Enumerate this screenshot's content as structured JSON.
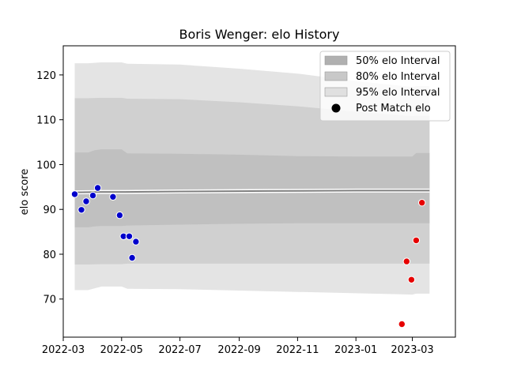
{
  "chart_data": {
    "type": "scatter",
    "title": "Boris Wenger: elo History",
    "xlabel": "",
    "ylabel": "elo score",
    "x_range": [
      "2022-03-01",
      "2023-04-15"
    ],
    "ylim": [
      61.5,
      126.5
    ],
    "x_ticks": [
      "2022-03",
      "2022-05",
      "2022-07",
      "2022-09",
      "2022-11",
      "2023-01",
      "2023-03"
    ],
    "y_ticks": [
      70,
      80,
      90,
      100,
      110,
      120
    ],
    "grid": false,
    "legend_position": "top-right",
    "legend": [
      {
        "label": "50% elo Interval",
        "kind": "band",
        "color": "#b0b0b0"
      },
      {
        "label": "80% elo Interval",
        "kind": "band",
        "color": "#c8c8c8"
      },
      {
        "label": "95% elo Interval",
        "kind": "band",
        "color": "#e0e0e0"
      },
      {
        "label": "Post Match elo",
        "kind": "marker",
        "color": "#000000"
      }
    ],
    "mean_line": {
      "name": "",
      "color": "#808080",
      "x": [
        "2022-03-13",
        "2022-04-10",
        "2022-05-05",
        "2022-07-01",
        "2022-10-01",
        "2023-01-01",
        "2023-03-06",
        "2023-03-19"
      ],
      "y": [
        93.8,
        93.9,
        93.9,
        94.0,
        94.1,
        94.2,
        94.2,
        94.2
      ]
    },
    "bands": [
      {
        "name": "95% elo Interval",
        "color": "#e4e4e4",
        "x": [
          "2022-03-13",
          "2022-03-20",
          "2022-03-27",
          "2022-04-10",
          "2022-04-24",
          "2022-05-01",
          "2022-05-07",
          "2022-07-01",
          "2022-09-01",
          "2022-11-01",
          "2023-01-01",
          "2023-03-01",
          "2023-03-05",
          "2023-03-19"
        ],
        "lower": [
          72.0,
          72.0,
          72.0,
          72.8,
          72.8,
          72.8,
          72.3,
          72.2,
          71.9,
          71.6,
          71.3,
          71.0,
          71.2,
          71.2
        ],
        "upper": [
          122.6,
          122.6,
          122.6,
          122.8,
          122.8,
          122.8,
          122.5,
          122.3,
          121.4,
          120.3,
          118.6,
          117.3,
          117.5,
          117.5
        ]
      },
      {
        "name": "80% elo Interval",
        "color": "#d0d0d0",
        "x": [
          "2022-03-13",
          "2022-03-20",
          "2022-03-27",
          "2022-04-10",
          "2022-04-24",
          "2022-05-01",
          "2022-05-07",
          "2022-07-01",
          "2022-09-01",
          "2022-11-01",
          "2023-01-01",
          "2023-03-01",
          "2023-03-05",
          "2023-03-19"
        ],
        "lower": [
          77.7,
          77.7,
          77.7,
          77.8,
          77.8,
          77.8,
          77.9,
          77.9,
          77.9,
          77.9,
          77.9,
          77.9,
          77.9,
          77.9
        ],
        "upper": [
          114.8,
          114.8,
          114.8,
          114.9,
          114.9,
          114.9,
          114.7,
          114.6,
          113.9,
          113.0,
          111.8,
          110.8,
          110.9,
          110.9
        ]
      },
      {
        "name": "50% elo Interval",
        "color": "#c0c0c0",
        "x": [
          "2022-03-13",
          "2022-03-27",
          "2022-04-03",
          "2022-04-10",
          "2022-04-24",
          "2022-05-01",
          "2022-05-07",
          "2022-07-01",
          "2022-09-01",
          "2022-11-01",
          "2023-01-01",
          "2023-03-01",
          "2023-03-05",
          "2023-03-19"
        ],
        "lower": [
          86.0,
          86.0,
          86.2,
          86.3,
          86.3,
          86.3,
          86.4,
          86.6,
          86.8,
          86.9,
          86.9,
          86.9,
          86.9,
          86.9
        ],
        "upper": [
          102.7,
          102.7,
          103.2,
          103.4,
          103.4,
          103.4,
          102.5,
          102.4,
          102.2,
          101.9,
          101.8,
          101.8,
          102.6,
          102.6
        ]
      }
    ],
    "series": [
      {
        "color": "#0000cc",
        "x": [
          "2022-03-13",
          "2022-03-20",
          "2022-03-25",
          "2022-04-01",
          "2022-04-06",
          "2022-04-22",
          "2022-04-29",
          "2022-05-03",
          "2022-05-09",
          "2022-05-12",
          "2022-05-16"
        ],
        "y": [
          93.4,
          89.9,
          91.8,
          93.1,
          94.8,
          92.8,
          88.7,
          84.0,
          84.0,
          79.2,
          82.8
        ]
      },
      {
        "color": "#e60000",
        "x": [
          "2023-02-18",
          "2023-02-23",
          "2023-02-28",
          "2023-03-05",
          "2023-03-11"
        ],
        "y": [
          64.4,
          78.4,
          74.3,
          83.1,
          91.5
        ]
      }
    ]
  }
}
